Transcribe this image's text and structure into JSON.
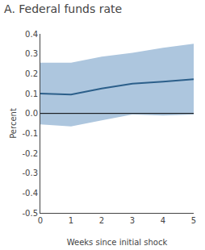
{
  "chart_data": {
    "type": "line",
    "title": "A. Federal funds rate",
    "ylabel": "Percent",
    "xlabel": "Weeks since initial shock",
    "x": [
      0,
      1,
      2,
      3,
      4,
      5
    ],
    "series": [
      {
        "type": "band",
        "color": "#adc6de",
        "lower": [
          -0.055,
          -0.065,
          -0.035,
          -0.005,
          -0.01,
          -0.005
        ],
        "upper": [
          0.255,
          0.255,
          0.285,
          0.305,
          0.33,
          0.35
        ]
      },
      {
        "type": "line",
        "color": "#2c5f8a",
        "values": [
          0.1,
          0.095,
          0.125,
          0.15,
          0.16,
          0.172
        ]
      },
      {
        "type": "hline",
        "color": "#000000",
        "value": 0
      }
    ],
    "xlim": [
      0,
      5
    ],
    "xticks": [
      0,
      1,
      2,
      3,
      4,
      5
    ],
    "ylim": [
      -0.5,
      0.4
    ],
    "yticks": [
      -0.5,
      -0.4,
      -0.3,
      -0.2,
      -0.1,
      {
        "value": 0,
        "label": "0.0"
      },
      0.1,
      0.2,
      0.3,
      0.4
    ],
    "grid": false
  }
}
